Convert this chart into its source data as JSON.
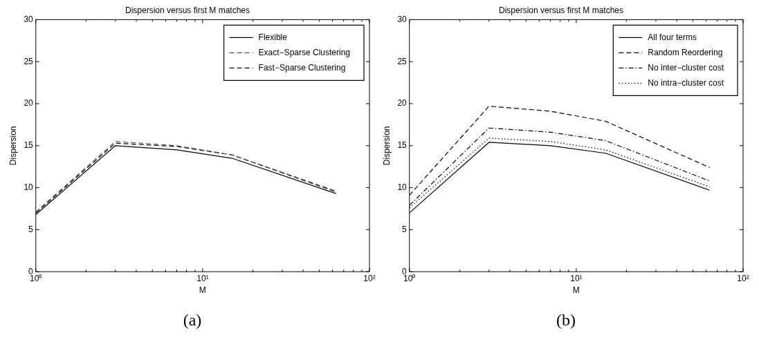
{
  "chart_data": [
    {
      "type": "line",
      "title": "Dispersion versus first M matches",
      "xlabel": "M",
      "ylabel": "Dispersion",
      "annotations": [
        "(a)"
      ],
      "x": [
        1,
        3,
        7,
        15,
        63
      ],
      "log": "x",
      "xlim": [
        1,
        100
      ],
      "xticks": [
        {
          "value": 1,
          "label": "10⁰"
        },
        {
          "value": 2,
          "label": null
        },
        {
          "value": 3,
          "label": null
        },
        {
          "value": 4,
          "label": null
        },
        {
          "value": 5,
          "label": null
        },
        {
          "value": 6,
          "label": null
        },
        {
          "value": 7,
          "label": null
        },
        {
          "value": 8,
          "label": null
        },
        {
          "value": 9,
          "label": null
        },
        {
          "value": 10,
          "label": "10¹"
        },
        {
          "value": 20,
          "label": null
        },
        {
          "value": 30,
          "label": null
        },
        {
          "value": 40,
          "label": null
        },
        {
          "value": 50,
          "label": null
        },
        {
          "value": 60,
          "label": null
        },
        {
          "value": 70,
          "label": null
        },
        {
          "value": 80,
          "label": null
        },
        {
          "value": 90,
          "label": null
        },
        {
          "value": 100,
          "label": "10²"
        }
      ],
      "ylim": [
        0,
        30
      ],
      "yticks": [
        0,
        5,
        10,
        15,
        20,
        25,
        30
      ],
      "legend": "top right",
      "marker": "none",
      "series": [
        {
          "name": "Flexible",
          "color": "#000000",
          "line_style": "solid",
          "values": [
            6.8,
            15.0,
            14.5,
            13.5,
            9.3
          ]
        },
        {
          "name": "Exact−Sparse Clustering",
          "color": "#555555",
          "line_style": "dashed",
          "values": [
            7.1,
            15.5,
            15.0,
            13.9,
            9.6
          ]
        },
        {
          "name": "Fast−Sparse Clustering",
          "color": "#000000",
          "line_style": "dashed",
          "values": [
            7.0,
            15.3,
            14.9,
            13.9,
            9.5
          ]
        }
      ]
    },
    {
      "type": "line",
      "title": "Dispersion versus first M matches",
      "xlabel": "M",
      "ylabel": "Dispersion",
      "annotations": [
        "(b)"
      ],
      "x": [
        1,
        3,
        7,
        15,
        63
      ],
      "log": "x",
      "xlim": [
        1,
        100
      ],
      "xticks": [
        {
          "value": 1,
          "label": "10⁰"
        },
        {
          "value": 2,
          "label": null
        },
        {
          "value": 3,
          "label": null
        },
        {
          "value": 4,
          "label": null
        },
        {
          "value": 5,
          "label": null
        },
        {
          "value": 6,
          "label": null
        },
        {
          "value": 7,
          "label": null
        },
        {
          "value": 8,
          "label": null
        },
        {
          "value": 9,
          "label": null
        },
        {
          "value": 10,
          "label": "10¹"
        },
        {
          "value": 20,
          "label": null
        },
        {
          "value": 30,
          "label": null
        },
        {
          "value": 40,
          "label": null
        },
        {
          "value": 50,
          "label": null
        },
        {
          "value": 60,
          "label": null
        },
        {
          "value": 70,
          "label": null
        },
        {
          "value": 80,
          "label": null
        },
        {
          "value": 90,
          "label": null
        },
        {
          "value": 100,
          "label": "10²"
        }
      ],
      "ylim": [
        0,
        30
      ],
      "yticks": [
        0,
        5,
        10,
        15,
        20,
        25,
        30
      ],
      "legend": "top right",
      "marker": "none",
      "series": [
        {
          "name": "All four terms",
          "color": "#000000",
          "line_style": "solid",
          "values": [
            7.0,
            15.4,
            15.0,
            14.1,
            9.7
          ]
        },
        {
          "name": "Random Reordering",
          "color": "#000000",
          "line_style": "dashed",
          "values": [
            9.1,
            19.7,
            19.1,
            17.9,
            12.4
          ]
        },
        {
          "name": "No inter−cluster cost",
          "color": "#000000",
          "line_style": "dashdot",
          "values": [
            7.9,
            17.1,
            16.6,
            15.6,
            10.8
          ]
        },
        {
          "name": "No intra−cluster cost",
          "color": "#000000",
          "line_style": "dotted",
          "values": [
            7.6,
            15.9,
            15.5,
            14.5,
            10.1
          ]
        }
      ]
    }
  ]
}
